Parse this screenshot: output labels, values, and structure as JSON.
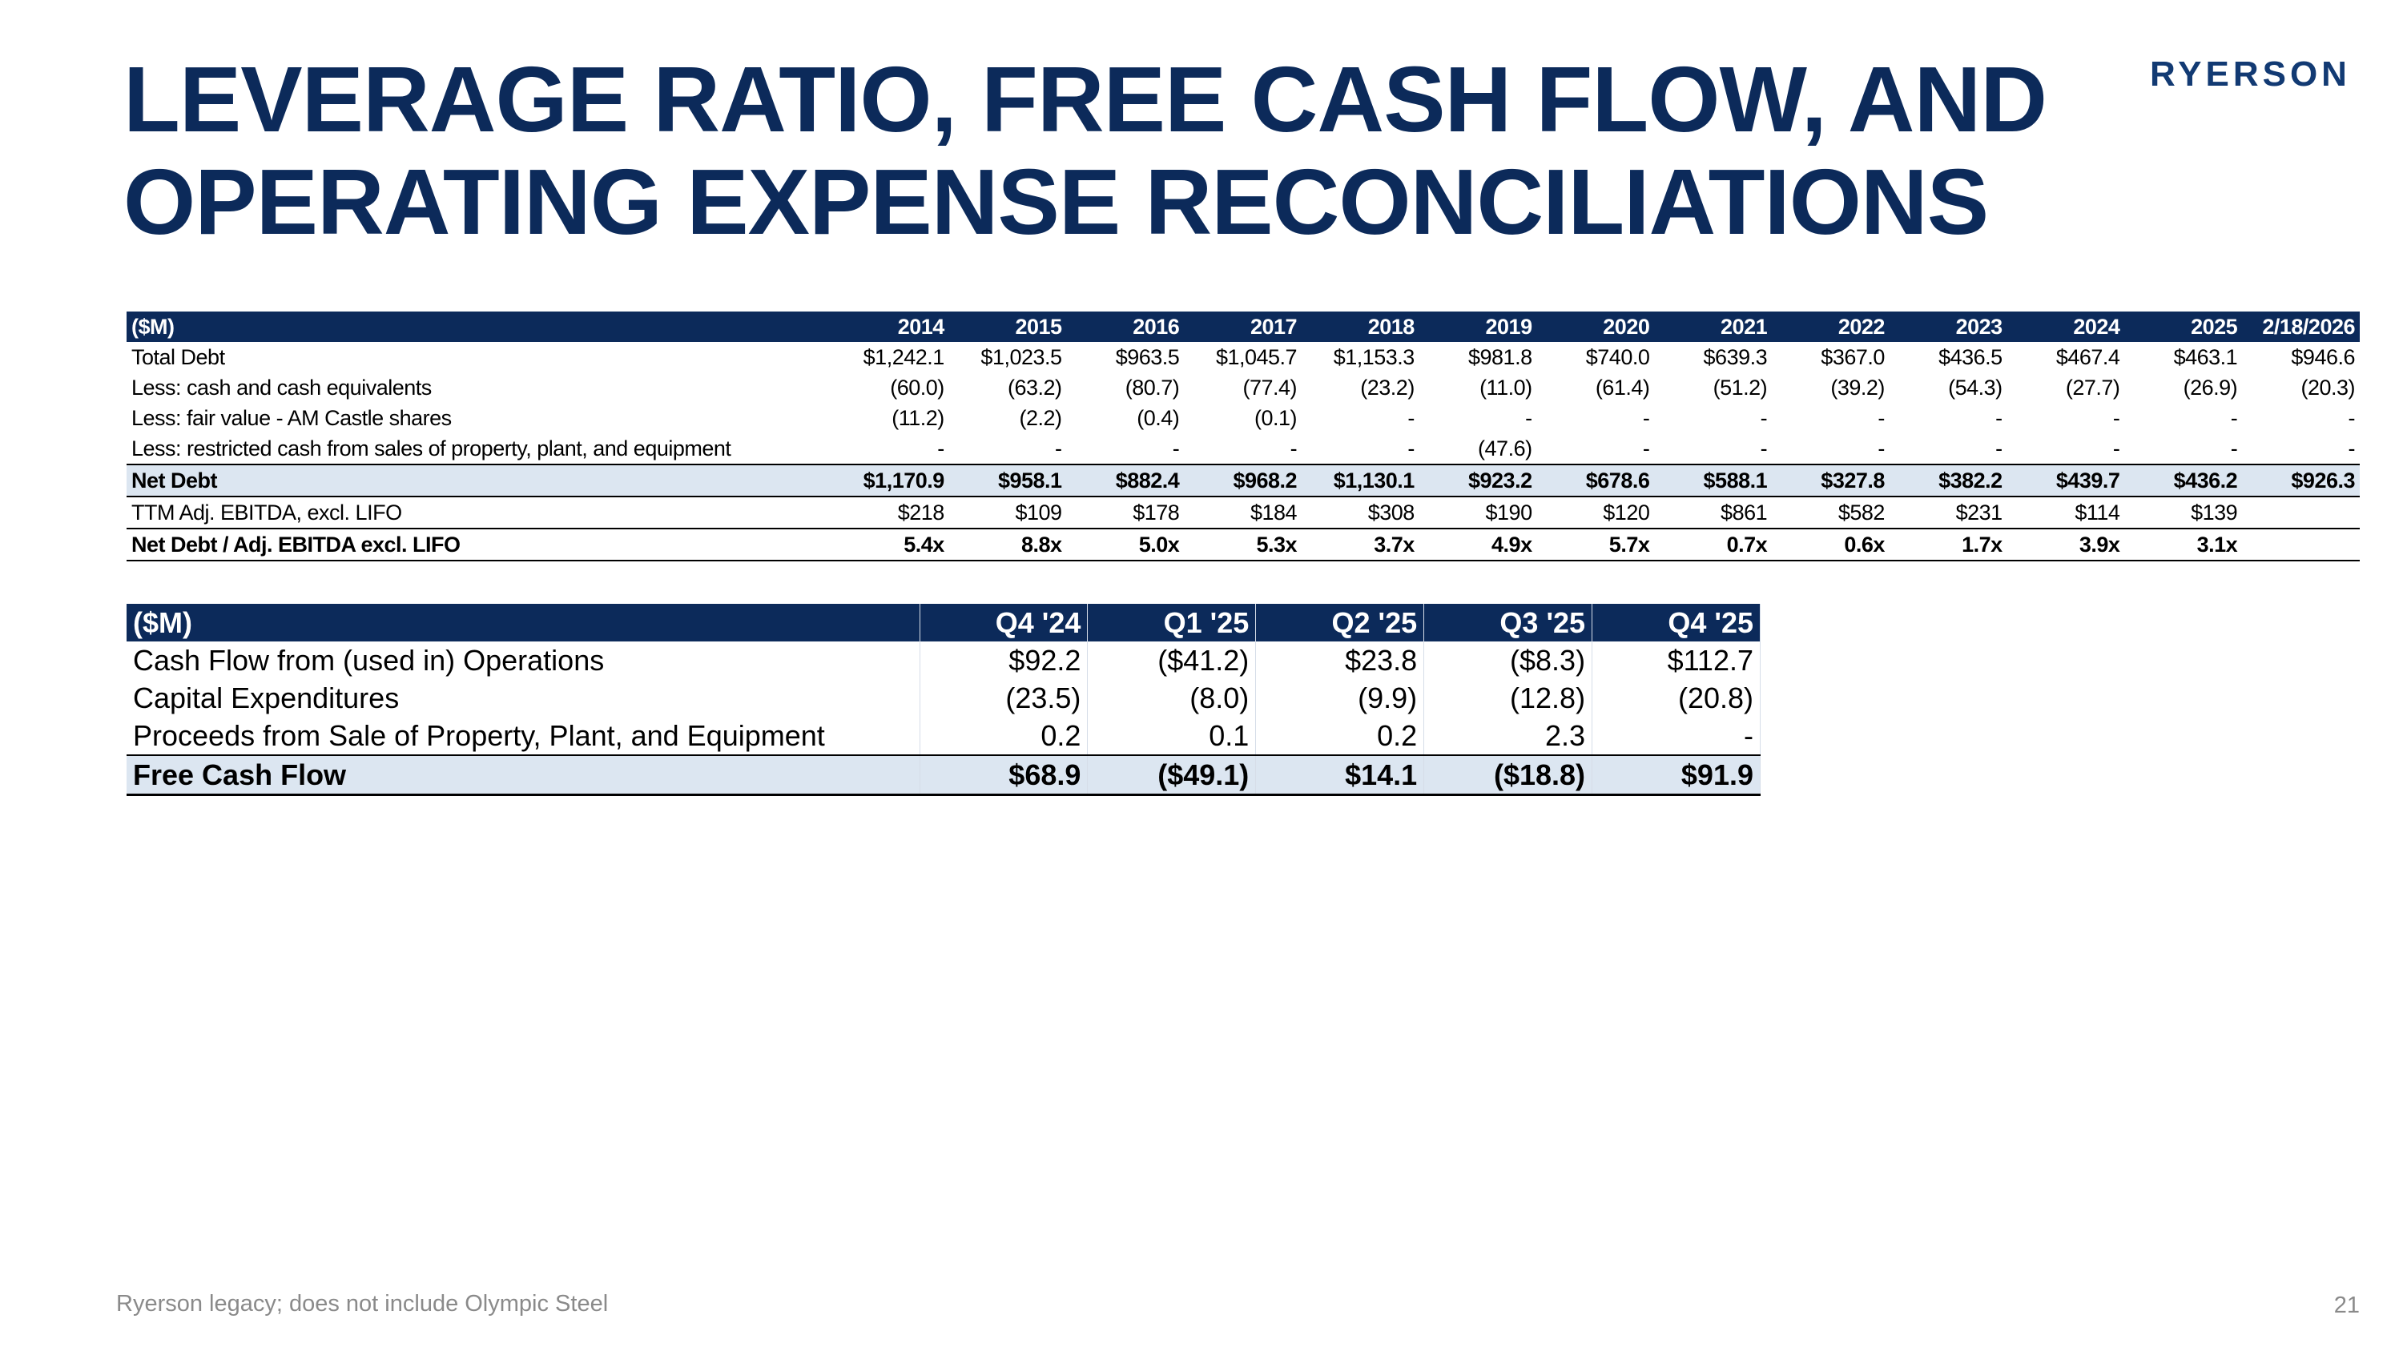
{
  "header": {
    "title_line1": "LEVERAGE RATIO, FREE CASH FLOW, AND",
    "title_line2": "OPERATING EXPENSE RECONCILIATIONS",
    "logo": "RYERSON"
  },
  "leverage_table": {
    "columns": [
      "($M)",
      "2014",
      "2015",
      "2016",
      "2017",
      "2018",
      "2019",
      "2020",
      "2021",
      "2022",
      "2023",
      "2024",
      "2025",
      "2/18/2026"
    ],
    "rows": [
      [
        "Total Debt",
        "$1,242.1",
        "$1,023.5",
        "$963.5",
        "$1,045.7",
        "$1,153.3",
        "$981.8",
        "$740.0",
        "$639.3",
        "$367.0",
        "$436.5",
        "$467.4",
        "$463.1",
        "$946.6"
      ],
      [
        "Less: cash and cash equivalents",
        "(60.0)",
        "(63.2)",
        "(80.7)",
        "(77.4)",
        "(23.2)",
        "(11.0)",
        "(61.4)",
        "(51.2)",
        "(39.2)",
        "(54.3)",
        "(27.7)",
        "(26.9)",
        "(20.3)"
      ],
      [
        "Less: fair value - AM Castle shares",
        "(11.2)",
        "(2.2)",
        "(0.4)",
        "(0.1)",
        "-",
        "-",
        "-",
        "-",
        "-",
        "-",
        "-",
        "-",
        "-"
      ],
      [
        "Less: restricted cash from sales of property, plant, and equipment",
        "-",
        "-",
        "-",
        "-",
        "-",
        "(47.6)",
        "-",
        "-",
        "-",
        "-",
        "-",
        "-",
        "-"
      ],
      [
        "Net Debt",
        "$1,170.9",
        "$958.1",
        "$882.4",
        "$968.2",
        "$1,130.1",
        "$923.2",
        "$678.6",
        "$588.1",
        "$327.8",
        "$382.2",
        "$439.7",
        "$436.2",
        "$926.3"
      ],
      [
        "TTM Adj. EBITDA, excl. LIFO",
        "$218",
        "$109",
        "$178",
        "$184",
        "$308",
        "$190",
        "$120",
        "$861",
        "$582",
        "$231",
        "$114",
        "$139"
      ],
      [
        "Net Debt / Adj. EBITDA excl. LIFO",
        "5.4x",
        "8.8x",
        "5.0x",
        "5.3x",
        "3.7x",
        "4.9x",
        "5.7x",
        "0.7x",
        "0.6x",
        "1.7x",
        "3.9x",
        "3.1x"
      ]
    ]
  },
  "fcf_table": {
    "columns": [
      "($M)",
      "Q4 '24",
      "Q1 '25",
      "Q2 '25",
      "Q3 '25",
      "Q4 '25"
    ],
    "rows": [
      [
        "Cash Flow from (used in) Operations",
        "$92.2",
        "($41.2)",
        "$23.8",
        "($8.3)",
        "$112.7"
      ],
      [
        "Capital Expenditures",
        "(23.5)",
        "(8.0)",
        "(9.9)",
        "(12.8)",
        "(20.8)"
      ],
      [
        "Proceeds from Sale of Property, Plant, and Equipment",
        "0.2",
        "0.1",
        "0.2",
        "2.3",
        "-"
      ],
      [
        "Free Cash Flow",
        "$68.9",
        "($49.1)",
        "$14.1",
        "($18.8)",
        "$91.9"
      ]
    ]
  },
  "footnote": "Ryerson legacy; does not include Olympic Steel",
  "page_number": "21"
}
